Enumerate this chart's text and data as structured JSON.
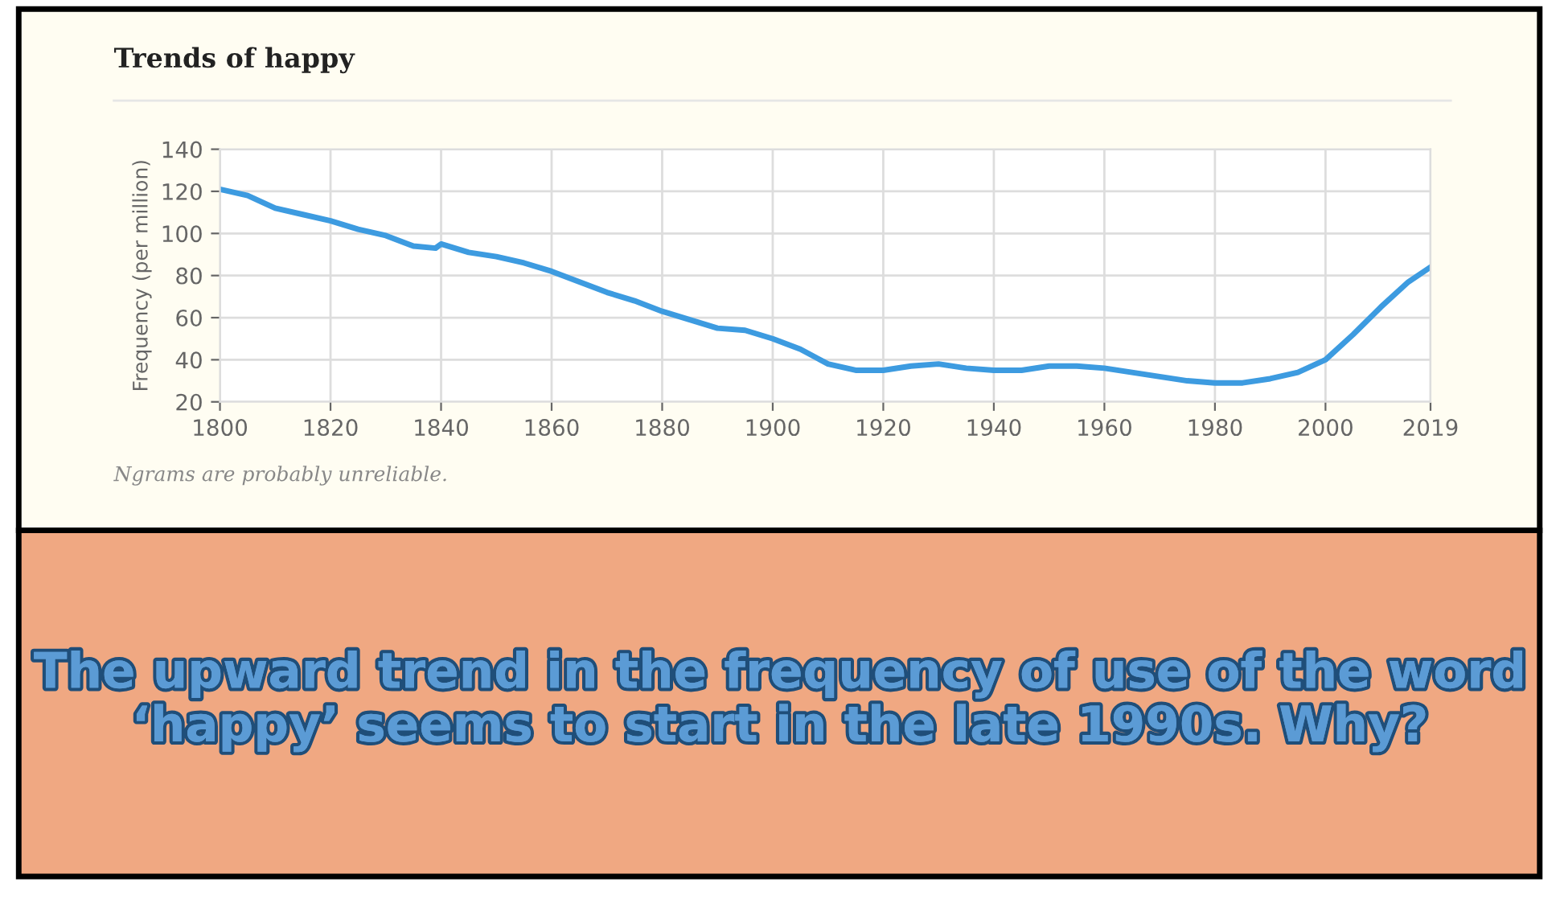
{
  "chart_data": {
    "type": "line",
    "title": "Trends of happy",
    "ylabel": "Frequency (per million)",
    "x": [
      1800,
      1805,
      1810,
      1815,
      1820,
      1825,
      1830,
      1835,
      1839,
      1840,
      1845,
      1850,
      1855,
      1860,
      1865,
      1870,
      1875,
      1880,
      1885,
      1890,
      1895,
      1900,
      1905,
      1910,
      1915,
      1920,
      1925,
      1930,
      1935,
      1940,
      1945,
      1950,
      1955,
      1960,
      1965,
      1970,
      1975,
      1980,
      1985,
      1990,
      1995,
      2000,
      2005,
      2010,
      2015,
      2019
    ],
    "series": [
      {
        "color": "#3d9be0",
        "values": [
          121,
          118,
          112,
          109,
          106,
          102,
          99,
          94,
          93,
          95,
          91,
          89,
          86,
          82,
          77,
          72,
          68,
          63,
          59,
          55,
          54,
          50,
          45,
          38,
          35,
          35,
          37,
          38,
          36,
          35,
          35,
          37,
          37,
          36,
          34,
          32,
          30,
          29,
          29,
          31,
          34,
          40,
          52,
          65,
          77,
          84
        ]
      }
    ],
    "xlim": [
      1800,
      2019
    ],
    "xticks": [
      1800,
      1820,
      1840,
      1860,
      1880,
      1900,
      1920,
      1940,
      1960,
      1980,
      2000,
      2019
    ],
    "ylim": [
      20,
      140
    ],
    "yticks": [
      20,
      40,
      60,
      80,
      100,
      120,
      140
    ],
    "grid": true,
    "marker": "none",
    "line_style": "solid",
    "annotations": [
      "Ngrams are probably unreliable.",
      "The upward trend in the frequency of use of the word ‘happy’ seems to start in the late 1990s. Why?"
    ]
  }
}
